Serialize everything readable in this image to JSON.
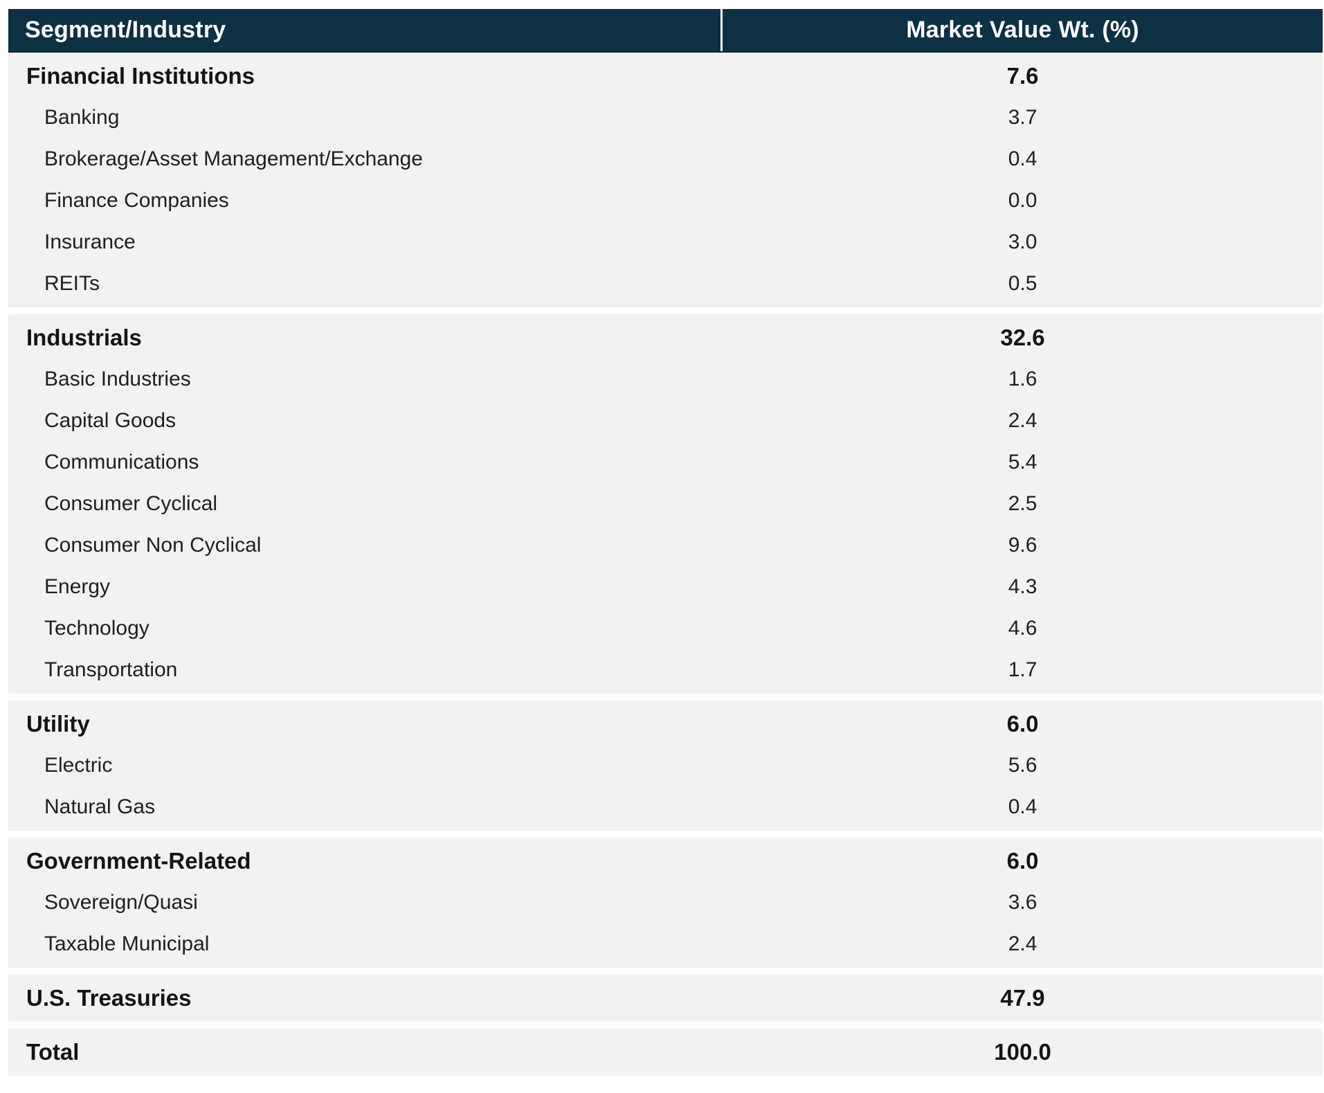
{
  "table": {
    "columns": [
      {
        "label": "Segment/Industry"
      },
      {
        "label": "Market Value Wt. (%)"
      }
    ],
    "sections": [
      {
        "header": {
          "label": "Financial Institutions",
          "value": "7.6"
        },
        "rows": [
          {
            "label": "Banking",
            "value": "3.7"
          },
          {
            "label": "Brokerage/Asset Management/Exchange",
            "value": "0.4"
          },
          {
            "label": "Finance Companies",
            "value": "0.0"
          },
          {
            "label": "Insurance",
            "value": "3.0"
          },
          {
            "label": "REITs",
            "value": "0.5"
          }
        ]
      },
      {
        "header": {
          "label": "Industrials",
          "value": "32.6"
        },
        "rows": [
          {
            "label": "Basic Industries",
            "value": "1.6"
          },
          {
            "label": "Capital Goods",
            "value": "2.4"
          },
          {
            "label": "Communications",
            "value": "5.4"
          },
          {
            "label": "Consumer Cyclical",
            "value": "2.5"
          },
          {
            "label": "Consumer Non Cyclical",
            "value": "9.6"
          },
          {
            "label": "Energy",
            "value": "4.3"
          },
          {
            "label": "Technology",
            "value": "4.6"
          },
          {
            "label": "Transportation",
            "value": "1.7"
          }
        ]
      },
      {
        "header": {
          "label": "Utility",
          "value": "6.0"
        },
        "rows": [
          {
            "label": "Electric",
            "value": "5.6"
          },
          {
            "label": "Natural Gas",
            "value": "0.4"
          }
        ]
      },
      {
        "header": {
          "label": "Government-Related",
          "value": "6.0"
        },
        "rows": [
          {
            "label": "Sovereign/Quasi",
            "value": "3.6"
          },
          {
            "label": "Taxable Municipal",
            "value": "2.4"
          }
        ]
      },
      {
        "header": {
          "label": "U.S. Treasuries",
          "value": "47.9"
        },
        "rows": []
      },
      {
        "header": {
          "label": "Total",
          "value": "100.0"
        },
        "rows": []
      }
    ]
  },
  "colors": {
    "header_background": "#0d3042",
    "header_text": "#ffffff",
    "section_background": "#f2f2f2",
    "body_text": "#1f1f1f"
  }
}
